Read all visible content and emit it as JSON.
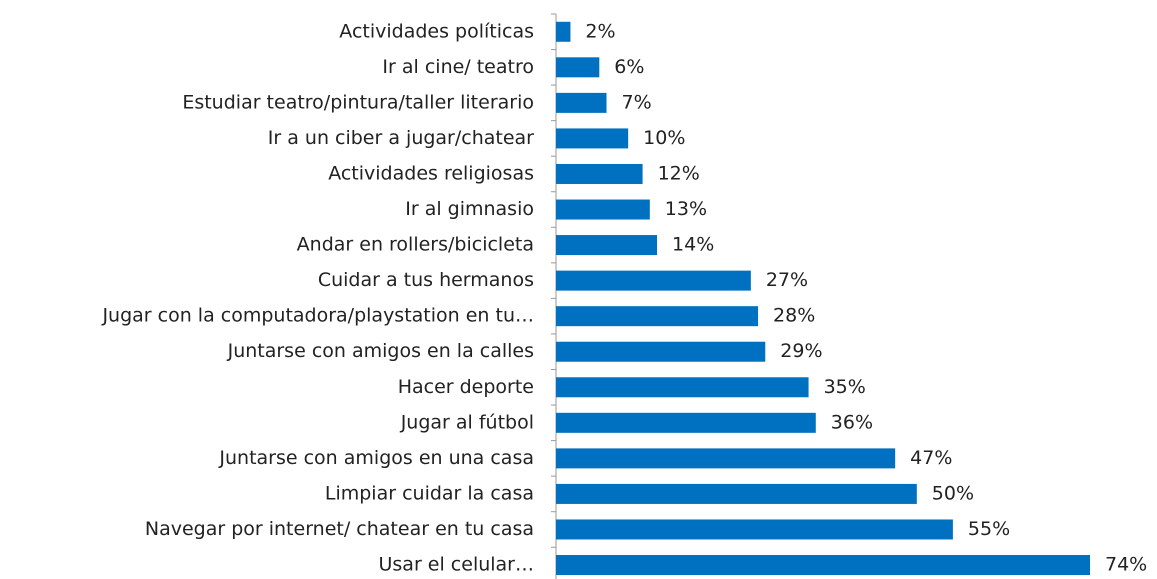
{
  "chart_data": {
    "type": "bar",
    "orientation": "horizontal",
    "categories": [
      "Actividades políticas",
      "Ir al cine/ teatro",
      "Estudiar teatro/pintura/taller literario",
      "Ir a un ciber a jugar/chatear",
      "Actividades religiosas",
      "Ir al gimnasio",
      "Andar en rollers/bicicleta",
      "Cuidar a tus hermanos",
      "Jugar con la computadora/playstation en tu…",
      "Juntarse con amigos en la calles",
      "Hacer deporte",
      "Jugar al fútbol",
      "Juntarse con amigos en una casa",
      "Limpiar cuidar la casa",
      "Navegar por internet/ chatear en tu casa",
      "Usar el celular…"
    ],
    "values": [
      2,
      6,
      7,
      10,
      12,
      13,
      14,
      27,
      28,
      29,
      35,
      36,
      47,
      50,
      55,
      74
    ],
    "value_labels": [
      "2%",
      "6%",
      "7%",
      "10%",
      "12%",
      "13%",
      "14%",
      "27%",
      "28%",
      "29%",
      "35%",
      "36%",
      "47%",
      "50%",
      "55%",
      "74%"
    ],
    "color": "#0070c0"
  }
}
